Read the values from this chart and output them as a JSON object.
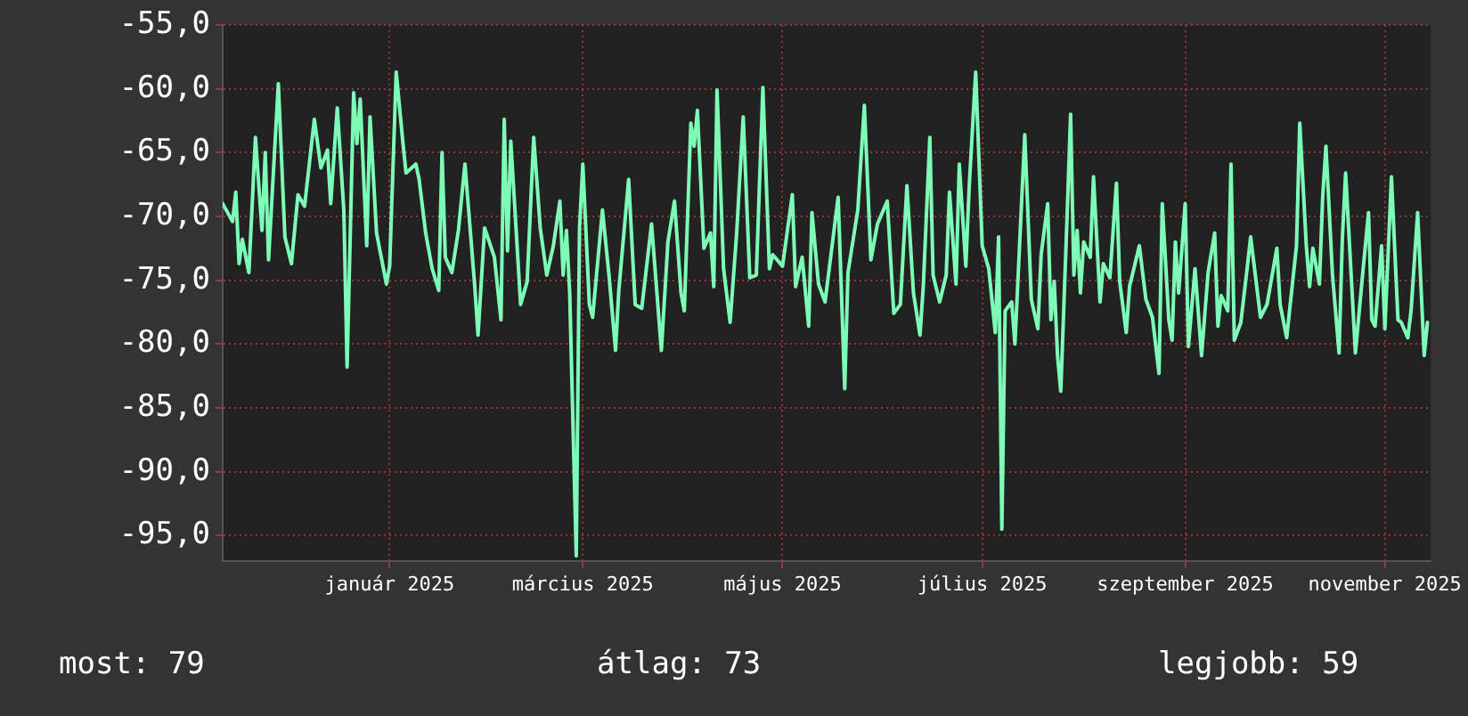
{
  "chart_data": {
    "type": "line",
    "xlim": [
      "2024-11-11",
      "2025-11-15"
    ],
    "ylim": [
      -97,
      -55
    ],
    "xticks": [
      {
        "value": "2025-01-01",
        "label": "január 2025"
      },
      {
        "value": "2025-03-01",
        "label": "március 2025"
      },
      {
        "value": "2025-05-01",
        "label": "május 2025"
      },
      {
        "value": "2025-07-01",
        "label": "július 2025"
      },
      {
        "value": "2025-09-01",
        "label": "szeptember 2025"
      },
      {
        "value": "2025-11-01",
        "label": "november 2025"
      }
    ],
    "yticks": [
      {
        "value": -55,
        "label": "-55,0"
      },
      {
        "value": -60,
        "label": "-60,0"
      },
      {
        "value": -65,
        "label": "-65,0"
      },
      {
        "value": -70,
        "label": "-70,0"
      },
      {
        "value": -75,
        "label": "-75,0"
      },
      {
        "value": -80,
        "label": "-80,0"
      },
      {
        "value": -85,
        "label": "-85,0"
      },
      {
        "value": -90,
        "label": "-90,0"
      },
      {
        "value": -95,
        "label": "-95,0"
      }
    ],
    "grid": true,
    "legend": false,
    "marker": "none",
    "line_style": "solid",
    "annotations": [
      "most: 79",
      "átlag: 73",
      "legjobb: 59"
    ],
    "series": [
      {
        "color": "#7dfcb8",
        "x": [
          "2024-11-11",
          "2024-11-14",
          "2024-11-15",
          "2024-11-16",
          "2024-11-17",
          "2024-11-19",
          "2024-11-21",
          "2024-11-23",
          "2024-11-24",
          "2024-11-25",
          "2024-11-28",
          "2024-11-30",
          "2024-12-02",
          "2024-12-04",
          "2024-12-06",
          "2024-12-09",
          "2024-12-11",
          "2024-12-13",
          "2024-12-14",
          "2024-12-16",
          "2024-12-18",
          "2024-12-19",
          "2024-12-21",
          "2024-12-22",
          "2024-12-23",
          "2024-12-25",
          "2024-12-26",
          "2024-12-28",
          "2024-12-31",
          "2025-01-01",
          "2025-01-03",
          "2025-01-05",
          "2025-01-06",
          "2025-01-09",
          "2025-01-10",
          "2025-01-12",
          "2025-01-14",
          "2025-01-16",
          "2025-01-17",
          "2025-01-18",
          "2025-01-20",
          "2025-01-22",
          "2025-01-24",
          "2025-01-27",
          "2025-01-28",
          "2025-01-30",
          "2025-02-02",
          "2025-02-04",
          "2025-02-05",
          "2025-02-06",
          "2025-02-07",
          "2025-02-10",
          "2025-02-12",
          "2025-02-14",
          "2025-02-16",
          "2025-02-18",
          "2025-02-20",
          "2025-02-22",
          "2025-02-23",
          "2025-02-24",
          "2025-02-25",
          "2025-02-27",
          "2025-02-28",
          "2025-03-01",
          "2025-03-03",
          "2025-03-04",
          "2025-03-07",
          "2025-03-09",
          "2025-03-11",
          "2025-03-12",
          "2025-03-15",
          "2025-03-17",
          "2025-03-19",
          "2025-03-22",
          "2025-03-23",
          "2025-03-25",
          "2025-03-27",
          "2025-03-29",
          "2025-03-31",
          "2025-04-01",
          "2025-04-03",
          "2025-04-04",
          "2025-04-05",
          "2025-04-07",
          "2025-04-09",
          "2025-04-10",
          "2025-04-11",
          "2025-04-13",
          "2025-04-15",
          "2025-04-17",
          "2025-04-19",
          "2025-04-21",
          "2025-04-23",
          "2025-04-25",
          "2025-04-27",
          "2025-04-28",
          "2025-05-01",
          "2025-05-04",
          "2025-05-05",
          "2025-05-07",
          "2025-05-09",
          "2025-05-10",
          "2025-05-12",
          "2025-05-14",
          "2025-05-18",
          "2025-05-20",
          "2025-05-21",
          "2025-05-24",
          "2025-05-26",
          "2025-05-28",
          "2025-05-30",
          "2025-06-02",
          "2025-06-04",
          "2025-06-06",
          "2025-06-08",
          "2025-06-10",
          "2025-06-12",
          "2025-06-13",
          "2025-06-15",
          "2025-06-16",
          "2025-06-18",
          "2025-06-20",
          "2025-06-21",
          "2025-06-23",
          "2025-06-24",
          "2025-06-26",
          "2025-06-27",
          "2025-06-29",
          "2025-07-01",
          "2025-07-03",
          "2025-07-05",
          "2025-07-06",
          "2025-07-07",
          "2025-07-08",
          "2025-07-10",
          "2025-07-11",
          "2025-07-14",
          "2025-07-16",
          "2025-07-18",
          "2025-07-19",
          "2025-07-21",
          "2025-07-22",
          "2025-07-23",
          "2025-07-24",
          "2025-07-25",
          "2025-07-27",
          "2025-07-28",
          "2025-07-29",
          "2025-07-30",
          "2025-07-31",
          "2025-08-01",
          "2025-08-03",
          "2025-08-04",
          "2025-08-06",
          "2025-08-07",
          "2025-08-09",
          "2025-08-11",
          "2025-08-12",
          "2025-08-14",
          "2025-08-15",
          "2025-08-18",
          "2025-08-20",
          "2025-08-22",
          "2025-08-24",
          "2025-08-25",
          "2025-08-27",
          "2025-08-28",
          "2025-08-29",
          "2025-08-30",
          "2025-09-01",
          "2025-09-02",
          "2025-09-04",
          "2025-09-06",
          "2025-09-08",
          "2025-09-10",
          "2025-09-11",
          "2025-09-12",
          "2025-09-14",
          "2025-09-15",
          "2025-09-16",
          "2025-09-18",
          "2025-09-20",
          "2025-09-21",
          "2025-09-24",
          "2025-09-26",
          "2025-09-29",
          "2025-09-30",
          "2025-10-02",
          "2025-10-05",
          "2025-10-06",
          "2025-10-08",
          "2025-10-09",
          "2025-10-10",
          "2025-10-12",
          "2025-10-13",
          "2025-10-14",
          "2025-10-16",
          "2025-10-18",
          "2025-10-19",
          "2025-10-20",
          "2025-10-22",
          "2025-10-23",
          "2025-10-25",
          "2025-10-27",
          "2025-10-28",
          "2025-10-29",
          "2025-10-31",
          "2025-11-01",
          "2025-11-03",
          "2025-11-05",
          "2025-11-06",
          "2025-11-08",
          "2025-11-09",
          "2025-11-11",
          "2025-11-13",
          "2025-11-14"
        ],
        "values": [
          -69,
          -70.4,
          -68.1,
          -73.7,
          -71.8,
          -74.4,
          -63.8,
          -71.1,
          -65,
          -73.4,
          -59.6,
          -71.6,
          -73.7,
          -68.3,
          -69.2,
          -62.4,
          -66.2,
          -64.8,
          -69,
          -61.5,
          -69.5,
          -81.8,
          -60.3,
          -64.3,
          -60.8,
          -72.3,
          -62.2,
          -71.3,
          -75.3,
          -73.9,
          -58.7,
          -64.1,
          -66.6,
          -65.9,
          -67.1,
          -71.3,
          -74.1,
          -75.8,
          -65,
          -73.2,
          -74.4,
          -71.1,
          -65.9,
          -75.5,
          -79.3,
          -70.9,
          -73.2,
          -78.1,
          -62.4,
          -72.7,
          -64.1,
          -76.9,
          -75.1,
          -63.8,
          -70.9,
          -74.6,
          -72.3,
          -68.8,
          -74.6,
          -71.1,
          -76,
          -96.6,
          -70.9,
          -65.9,
          -76.9,
          -77.9,
          -69.5,
          -74.6,
          -80.5,
          -75.8,
          -67.1,
          -76.9,
          -77.2,
          -70.6,
          -73.9,
          -80.5,
          -72,
          -68.8,
          -76,
          -77.4,
          -62.7,
          -64.5,
          -61.7,
          -72.5,
          -71.3,
          -75.5,
          -60.1,
          -74.1,
          -78.3,
          -71.3,
          -62.2,
          -74.8,
          -74.6,
          -59.9,
          -74.1,
          -73,
          -73.9,
          -68.3,
          -75.5,
          -73.2,
          -78.6,
          -69.7,
          -75.3,
          -76.7,
          -68.5,
          -83.5,
          -74.4,
          -69.5,
          -61.3,
          -73.4,
          -70.6,
          -68.8,
          -77.6,
          -76.9,
          -67.6,
          -76,
          -79.3,
          -75.5,
          -63.8,
          -74.6,
          -76.7,
          -74.6,
          -68.1,
          -75.3,
          -65.9,
          -73.9,
          -67.8,
          -58.7,
          -72.3,
          -74.1,
          -79.1,
          -71.6,
          -94.5,
          -77.4,
          -76.7,
          -80,
          -63.6,
          -76.5,
          -78.8,
          -73,
          -69,
          -78.1,
          -75.1,
          -80.9,
          -83.7,
          -69.5,
          -62,
          -74.6,
          -71.1,
          -76,
          -72,
          -73.2,
          -66.9,
          -76.7,
          -73.7,
          -74.8,
          -67.4,
          -75.1,
          -79.1,
          -75.5,
          -72.3,
          -76.5,
          -77.9,
          -82.3,
          -69,
          -78.1,
          -79.7,
          -72,
          -76,
          -69,
          -80.2,
          -74.1,
          -80.9,
          -74.4,
          -71.3,
          -78.6,
          -76.2,
          -77.4,
          -65.9,
          -79.7,
          -78.3,
          -73.9,
          -71.6,
          -77.9,
          -76.9,
          -72.5,
          -76.9,
          -79.5,
          -72.3,
          -62.7,
          -72.3,
          -75.5,
          -72.5,
          -75.3,
          -68.5,
          -64.5,
          -74.6,
          -80.7,
          -71.8,
          -66.6,
          -76,
          -80.7,
          -75.1,
          -69.7,
          -78.1,
          -78.6,
          -72.3,
          -78.8,
          -66.9,
          -78.1,
          -78.3,
          -79.5,
          -77.4,
          -69.7,
          -80.9,
          -78.3
        ]
      }
    ]
  }
}
